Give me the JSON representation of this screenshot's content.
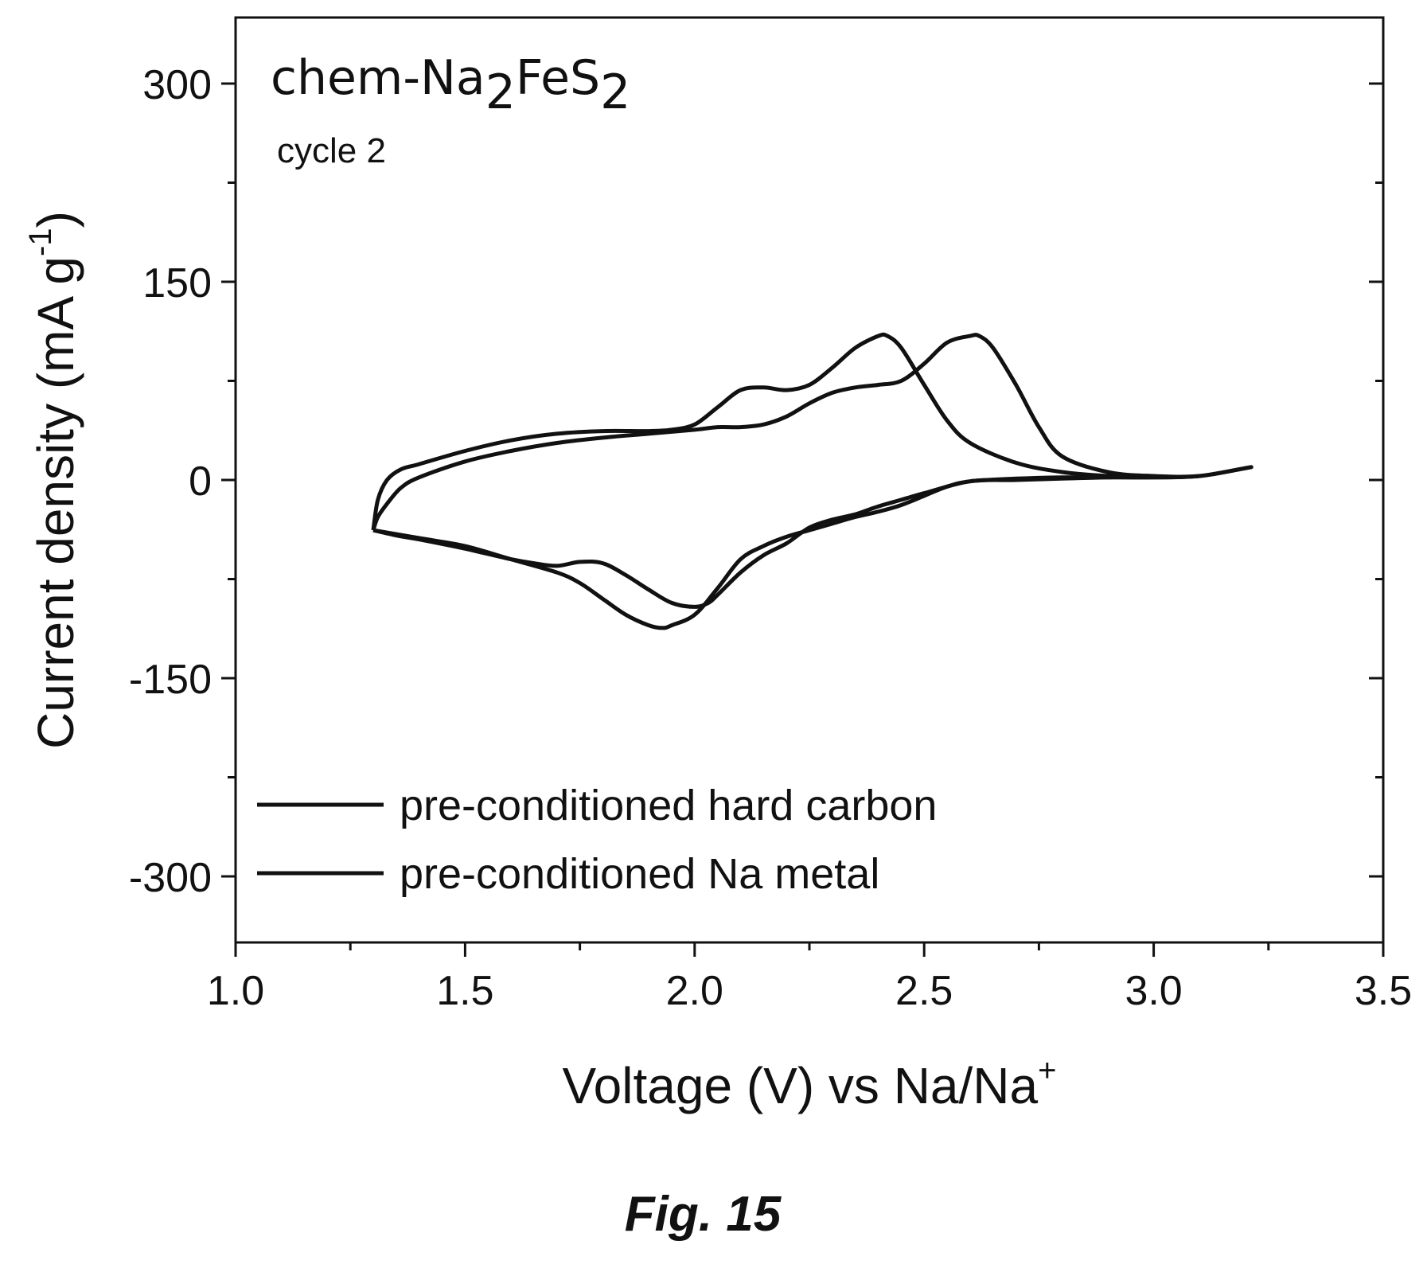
{
  "chart_data": {
    "type": "line",
    "title": "chem-Na2FeS2",
    "title_parts": {
      "prefix": "chem-Na",
      "sub1": "2",
      "mid": "FeS",
      "sub2": "2"
    },
    "subtitle": "cycle 2",
    "xlabel": "Voltage (V) vs Na/Na+",
    "xlabel_parts": {
      "main": "Voltage (V) vs Na/Na",
      "sup": "+"
    },
    "ylabel": "Current density (mA g-1)",
    "ylabel_parts": {
      "main": "Current density (mA g",
      "sup": "-1",
      "tail": ")"
    },
    "xlim": [
      1.0,
      3.5
    ],
    "ylim": [
      -350,
      350
    ],
    "x_ticks": [
      1.0,
      1.5,
      2.0,
      2.5,
      3.0,
      3.5
    ],
    "x_tick_labels": [
      "1.0",
      "1.5",
      "2.0",
      "2.5",
      "3.0",
      "3.5"
    ],
    "y_ticks": [
      -300,
      -150,
      0,
      150,
      300
    ],
    "y_tick_labels": [
      "-300",
      "-150",
      "0",
      "150",
      "300"
    ],
    "grid": false,
    "legend_position": "bottom-left",
    "line_color": "#111111",
    "series": [
      {
        "name": "pre-conditioned hard carbon",
        "x": [
          1.3,
          1.31,
          1.33,
          1.36,
          1.4,
          1.5,
          1.6,
          1.7,
          1.8,
          1.9,
          1.95,
          2.0,
          2.05,
          2.1,
          2.15,
          2.2,
          2.25,
          2.3,
          2.35,
          2.4,
          2.42,
          2.45,
          2.5,
          2.55,
          2.6,
          2.7,
          2.8,
          2.9,
          3.0,
          3.1,
          3.2,
          3.2,
          3.1,
          3.0,
          2.9,
          2.8,
          2.7,
          2.6,
          2.5,
          2.45,
          2.4,
          2.35,
          2.3,
          2.25,
          2.2,
          2.15,
          2.1,
          2.05,
          2.03,
          2.0,
          1.95,
          1.9,
          1.85,
          1.8,
          1.75,
          1.7,
          1.65,
          1.6,
          1.5,
          1.4,
          1.35,
          1.3
        ],
        "y": [
          -38,
          -15,
          0,
          8,
          12,
          22,
          30,
          35,
          37,
          37,
          38,
          42,
          55,
          68,
          70,
          68,
          72,
          85,
          100,
          109,
          109,
          100,
          72,
          45,
          28,
          13,
          6,
          3,
          2,
          3,
          9,
          9,
          3,
          2,
          2,
          1,
          0,
          -1,
          -10,
          -15,
          -20,
          -26,
          -30,
          -36,
          -48,
          -57,
          -70,
          -87,
          -93,
          -96,
          -93,
          -83,
          -72,
          -63,
          -62,
          -65,
          -63,
          -60,
          -52,
          -45,
          -42,
          -38
        ]
      },
      {
        "name": "pre-conditioned Na metal",
        "x": [
          1.3,
          1.31,
          1.33,
          1.36,
          1.4,
          1.5,
          1.6,
          1.7,
          1.8,
          1.9,
          2.0,
          2.05,
          2.1,
          2.15,
          2.2,
          2.25,
          2.3,
          2.35,
          2.4,
          2.45,
          2.5,
          2.55,
          2.6,
          2.62,
          2.65,
          2.7,
          2.75,
          2.8,
          2.9,
          3.0,
          3.1,
          3.2,
          3.2,
          3.1,
          3.0,
          2.9,
          2.8,
          2.7,
          2.6,
          2.55,
          2.5,
          2.45,
          2.4,
          2.35,
          2.3,
          2.25,
          2.2,
          2.15,
          2.1,
          2.05,
          2.0,
          1.95,
          1.93,
          1.9,
          1.85,
          1.8,
          1.75,
          1.7,
          1.6,
          1.5,
          1.4,
          1.3
        ],
        "y": [
          -38,
          -28,
          -18,
          -6,
          2,
          14,
          22,
          28,
          32,
          35,
          38,
          40,
          40,
          42,
          48,
          58,
          66,
          70,
          72,
          75,
          88,
          104,
          109,
          109,
          100,
          72,
          40,
          18,
          6,
          3,
          3,
          9,
          9,
          3,
          2,
          2,
          2,
          1,
          -1,
          -5,
          -12,
          -19,
          -24,
          -28,
          -33,
          -38,
          -43,
          -50,
          -60,
          -82,
          -102,
          -110,
          -112,
          -110,
          -102,
          -90,
          -78,
          -70,
          -60,
          -50,
          -44,
          -38
        ]
      }
    ]
  },
  "caption": "Fig. 15"
}
